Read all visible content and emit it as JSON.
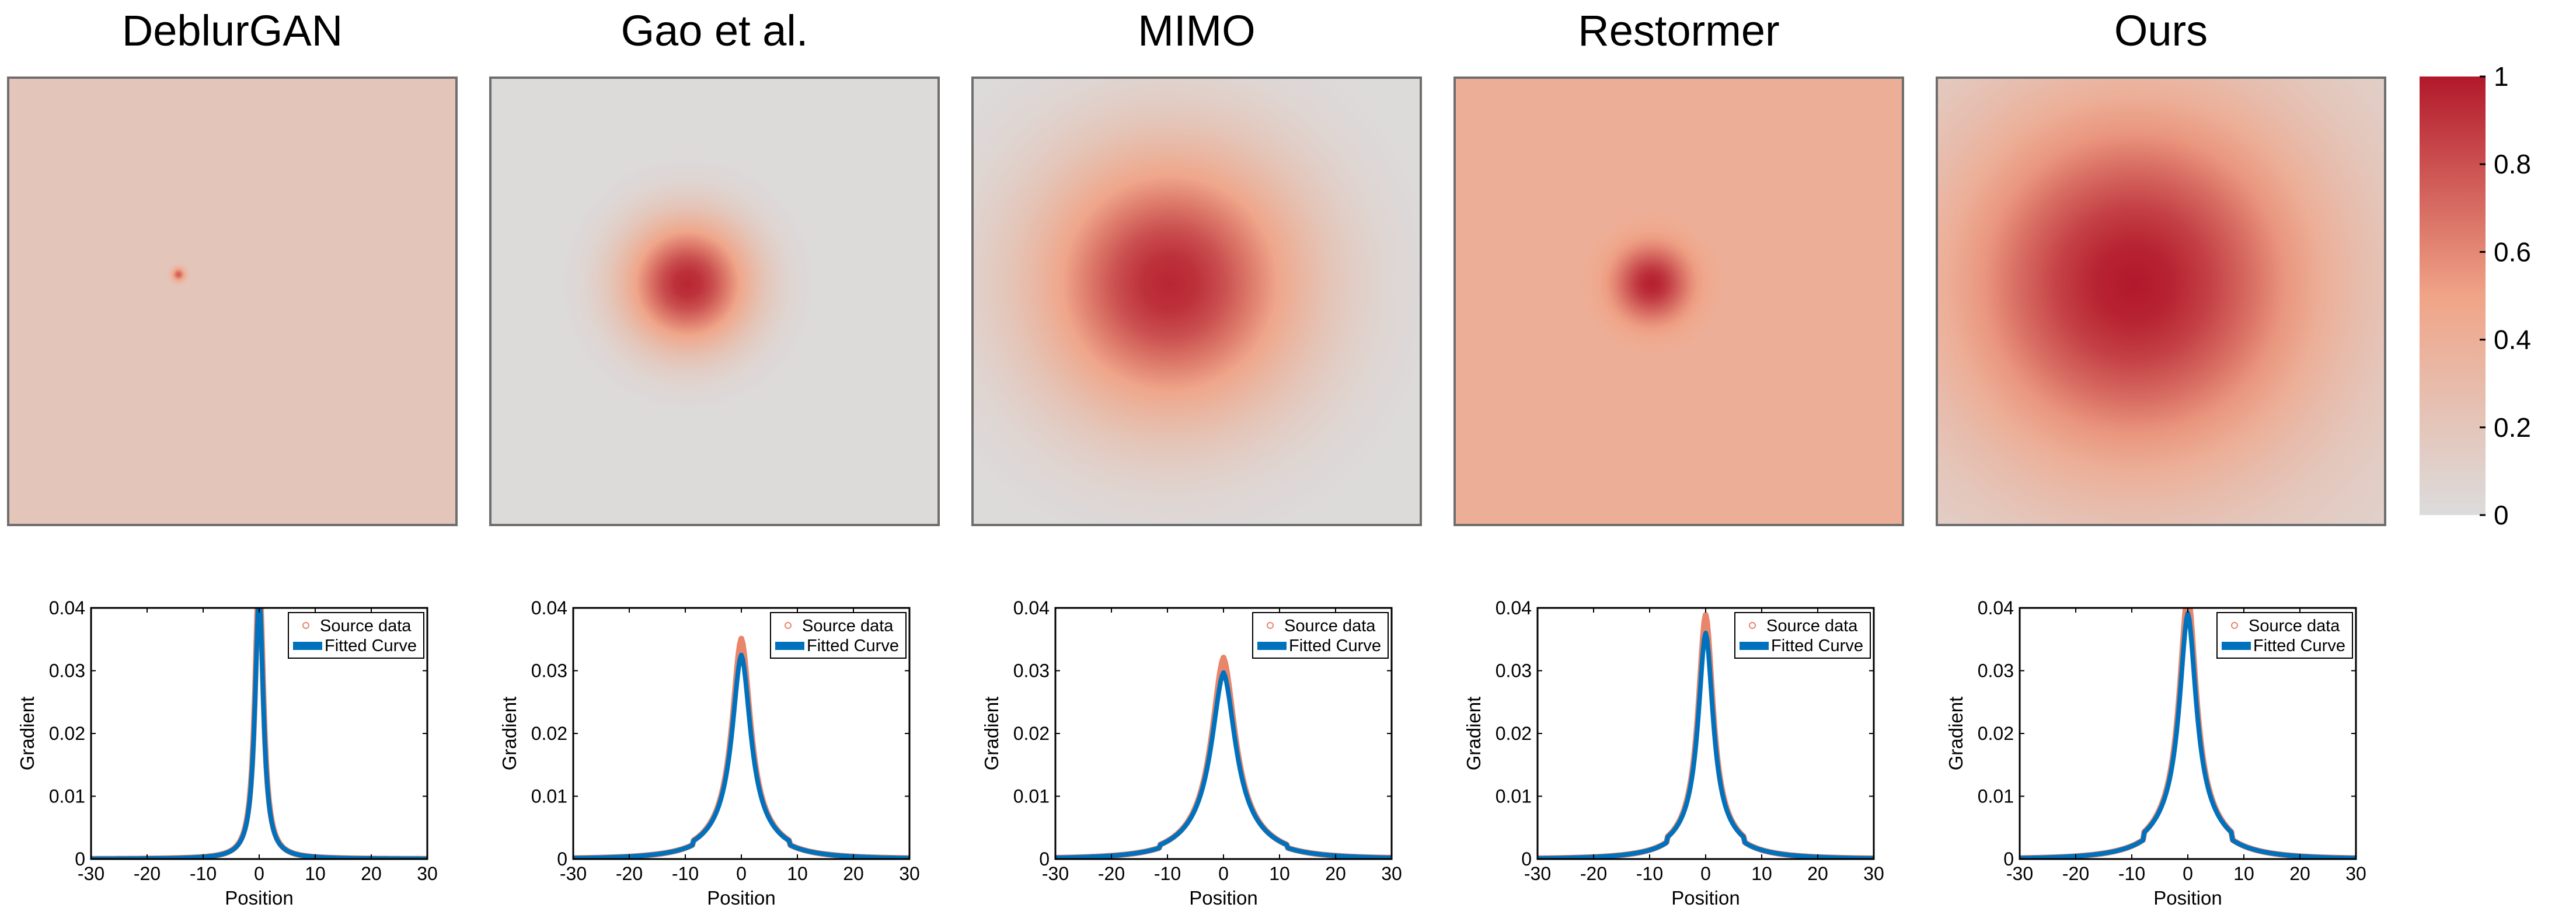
{
  "colors": {
    "colormap_low": "#dcdcdc",
    "colormap_mid": "#f0a487",
    "colormap_high": "#b2182b",
    "source_marker": "#e8856a",
    "fitted_curve": "#0072bd",
    "panel_border": "#6e6e6e"
  },
  "colorbar": {
    "ticks": [
      {
        "value": 0,
        "label": "0"
      },
      {
        "value": 0.2,
        "label": "0.2"
      },
      {
        "value": 0.4,
        "label": "0.4"
      },
      {
        "value": 0.6,
        "label": "0.6"
      },
      {
        "value": 0.8,
        "label": "0.8"
      },
      {
        "value": 1,
        "label": "1"
      }
    ]
  },
  "chart_data": [
    {
      "type": "heatmap",
      "title": "DeblurGAN",
      "description_values": {
        "center": [
          -0.12,
          -0.06
        ],
        "peak": 0.75,
        "sigma": 0.012,
        "background": 0.2
      },
      "colorbar_range": [
        0,
        1
      ]
    },
    {
      "type": "heatmap",
      "title": "Gao et al.",
      "description_values": {
        "center": [
          -0.06,
          -0.04
        ],
        "peak": 0.95,
        "sigma": 0.12,
        "background": 0.0
      },
      "colorbar_range": [
        0,
        1
      ]
    },
    {
      "type": "heatmap",
      "title": "MIMO",
      "description_values": {
        "center": [
          -0.06,
          -0.04
        ],
        "peak": 0.95,
        "sigma": 0.25,
        "background": 0.0
      },
      "colorbar_range": [
        0,
        1
      ]
    },
    {
      "type": "heatmap",
      "title": "Restormer",
      "description_values": {
        "center": [
          -0.06,
          -0.04
        ],
        "peak": 0.97,
        "sigma": 0.07,
        "background": 0.4
      },
      "colorbar_range": [
        0,
        1
      ]
    },
    {
      "type": "heatmap",
      "title": "Ours",
      "description_values": {
        "center": [
          -0.06,
          -0.04
        ],
        "peak": 1.0,
        "sigma": 0.35,
        "background": 0.08
      },
      "colorbar_range": [
        0,
        1
      ]
    },
    {
      "type": "line",
      "xlabel": "Position",
      "ylabel": "Gradient",
      "xlim": [
        -30,
        30
      ],
      "ylim": [
        0,
        0.04
      ],
      "xticks": [
        -30,
        -20,
        -10,
        0,
        10,
        20,
        30
      ],
      "yticks": [
        0,
        0.01,
        0.02,
        0.03,
        0.04
      ],
      "legend": [
        "Source data",
        "Fitted Curve"
      ],
      "legend_position": "top-right",
      "peak": 0.042,
      "gamma": 0.9,
      "tail_weight": 0.0
    },
    {
      "type": "line",
      "xlabel": "Position",
      "ylabel": "Gradient",
      "xlim": [
        -30,
        30
      ],
      "ylim": [
        0,
        0.04
      ],
      "xticks": [
        -30,
        -20,
        -10,
        0,
        10,
        20,
        30
      ],
      "yticks": [
        0,
        0.01,
        0.02,
        0.03,
        0.04
      ],
      "legend": [
        "Source data",
        "Fitted Curve"
      ],
      "legend_position": "top-right",
      "peak": 0.026,
      "gamma": 2.0,
      "tail_weight": 0.25
    },
    {
      "type": "line",
      "xlabel": "Position",
      "ylabel": "Gradient",
      "xlim": [
        -30,
        30
      ],
      "ylim": [
        0,
        0.04
      ],
      "xticks": [
        -30,
        -20,
        -10,
        0,
        10,
        20,
        30
      ],
      "yticks": [
        0,
        0.01,
        0.02,
        0.03,
        0.04
      ],
      "legend": [
        "Source data",
        "Fitted Curve"
      ],
      "legend_position": "top-right",
      "peak": 0.022,
      "gamma": 2.6,
      "tail_weight": 0.35
    },
    {
      "type": "line",
      "xlabel": "Position",
      "ylabel": "Gradient",
      "xlim": [
        -30,
        30
      ],
      "ylim": [
        0,
        0.04
      ],
      "xticks": [
        -30,
        -20,
        -10,
        0,
        10,
        20,
        30
      ],
      "yticks": [
        0,
        0.01,
        0.02,
        0.03,
        0.04
      ],
      "legend": [
        "Source data",
        "Fitted Curve"
      ],
      "legend_position": "top-right",
      "peak": 0.03,
      "gamma": 1.6,
      "tail_weight": 0.2
    },
    {
      "type": "line",
      "xlabel": "Position",
      "ylabel": "Gradient",
      "xlim": [
        -30,
        30
      ],
      "ylim": [
        0,
        0.04
      ],
      "xticks": [
        -30,
        -20,
        -10,
        0,
        10,
        20,
        30
      ],
      "yticks": [
        0,
        0.01,
        0.02,
        0.03,
        0.04
      ],
      "legend": [
        "Source data",
        "Fitted Curve"
      ],
      "legend_position": "top-right",
      "peak": 0.029,
      "gamma": 1.8,
      "tail_weight": 0.35
    }
  ]
}
